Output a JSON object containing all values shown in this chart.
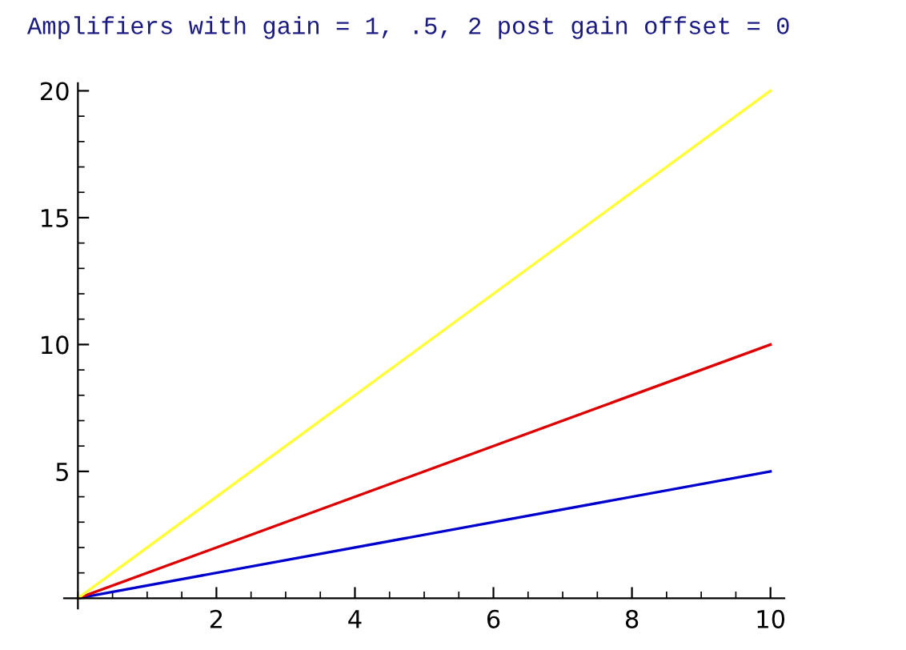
{
  "chart_data": {
    "type": "line",
    "title": "Amplifiers with gain = 1, .5, 2 post gain offset = 0",
    "x": [
      0,
      10
    ],
    "series": [
      {
        "color": "#0000cc",
        "values": [
          0,
          5
        ]
      },
      {
        "color": "#dd0000",
        "values": [
          0,
          10
        ]
      },
      {
        "color": "#ffff33",
        "values": [
          0,
          20
        ]
      }
    ],
    "xlim": [
      -0.2,
      10.2
    ],
    "ylim": [
      -0.4,
      20.3
    ],
    "xticks": [
      2,
      4,
      6,
      8,
      10
    ],
    "yticks": [
      5,
      10,
      15,
      20
    ],
    "grid": false,
    "legend": false,
    "marker": "none",
    "line_style": "solid"
  }
}
